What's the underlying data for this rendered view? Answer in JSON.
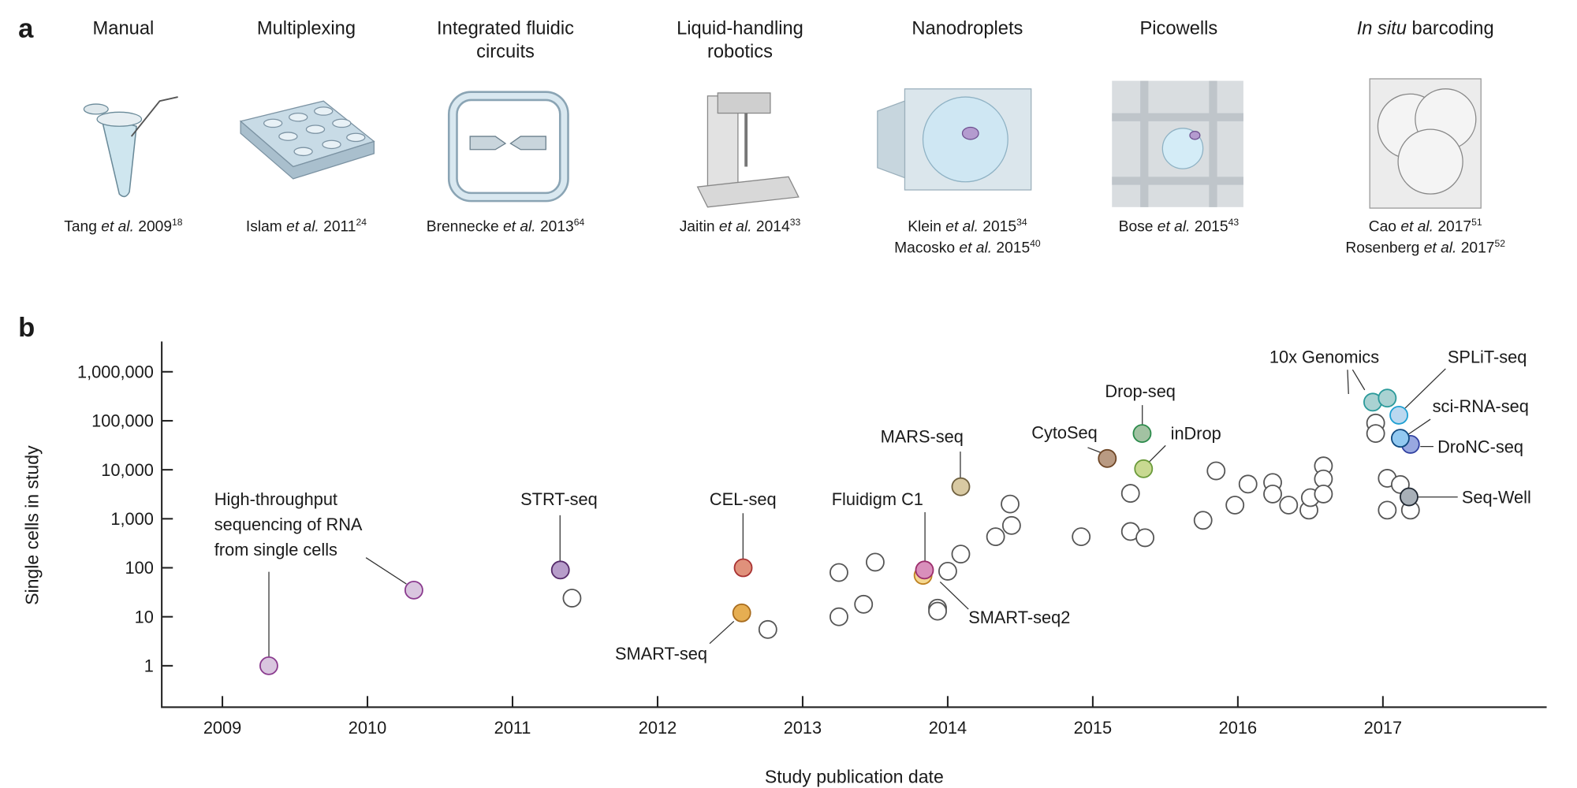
{
  "panel_a": {
    "label": "a",
    "methods": [
      {
        "title": [
          "Manual"
        ],
        "citations": [
          {
            "author": "Tang",
            "etal": "et al.",
            "year": "2009",
            "ref": "18"
          }
        ]
      },
      {
        "title": [
          "Multiplexing"
        ],
        "citations": [
          {
            "author": "Islam",
            "etal": "et al.",
            "year": "2011",
            "ref": "24"
          }
        ]
      },
      {
        "title": [
          "Integrated fluidic",
          "circuits"
        ],
        "citations": [
          {
            "author": "Brennecke",
            "etal": "et al.",
            "year": "2013",
            "ref": "64"
          }
        ]
      },
      {
        "title": [
          "Liquid-handling",
          "robotics"
        ],
        "citations": [
          {
            "author": "Jaitin",
            "etal": "et al.",
            "year": "2014",
            "ref": "33"
          }
        ]
      },
      {
        "title": [
          "Nanodroplets"
        ],
        "citations": [
          {
            "author": "Klein",
            "etal": "et al.",
            "year": "2015",
            "ref": "34"
          },
          {
            "author": "Macosko",
            "etal": "et al.",
            "year": "2015",
            "ref": "40"
          }
        ]
      },
      {
        "title": [
          "Picowells"
        ],
        "citations": [
          {
            "author": "Bose",
            "etal": "et al.",
            "year": "2015",
            "ref": "43"
          }
        ]
      },
      {
        "title_italic": "In situ",
        "title_rest": " barcoding",
        "citations": [
          {
            "author": "Cao",
            "etal": "et al.",
            "year": "2017",
            "ref": "51"
          },
          {
            "author": "Rosenberg",
            "etal": "et al.",
            "year": "2017",
            "ref": "52"
          }
        ]
      }
    ]
  },
  "chart_data": {
    "panel_label": "b",
    "type": "scatter",
    "xlabel": "Study publication date",
    "ylabel": "Single cells in study",
    "xlim": [
      2008.6,
      2017.95
    ],
    "ylim": [
      0.5,
      3000000
    ],
    "yscale": "log",
    "grid": false,
    "xticks": [
      "2009",
      "2010",
      "2011",
      "2012",
      "2013",
      "2014",
      "2015",
      "2016",
      "2017"
    ],
    "yticks": [
      {
        "value": 1,
        "label": "1"
      },
      {
        "value": 10,
        "label": "10"
      },
      {
        "value": 100,
        "label": "100"
      },
      {
        "value": 1000,
        "label": "1,000"
      },
      {
        "value": 10000,
        "label": "10,000"
      },
      {
        "value": 100000,
        "label": "100,000"
      },
      {
        "value": 1000000,
        "label": "1,000,000"
      }
    ],
    "points": [
      {
        "x": 2009.32,
        "y": 1,
        "label": [
          "High-throughput",
          "sequencing of RNA",
          "from single cells"
        ],
        "fill": "#d9c6df",
        "stroke": "#8a3a8e"
      },
      {
        "x": 2010.32,
        "y": 35,
        "fill": "#d9c6df",
        "stroke": "#8a3a8e"
      },
      {
        "x": 2011.33,
        "y": 90,
        "label": [
          "STRT-seq"
        ],
        "fill": "#b79dca",
        "stroke": "#552a6a"
      },
      {
        "x": 2012.59,
        "y": 100,
        "label": [
          "CEL-seq"
        ],
        "fill": "#e0917b",
        "stroke": "#a83232"
      },
      {
        "x": 2012.58,
        "y": 12,
        "label": [
          "SMART-seq"
        ],
        "fill": "#e6ae52",
        "stroke": "#a86c1e"
      },
      {
        "x": 2013.83,
        "y": 70,
        "label": [
          "SMART-seq2"
        ],
        "fill": "#f5d891",
        "stroke": "#bf8222"
      },
      {
        "x": 2013.84,
        "y": 90,
        "label": [
          "Fluidigm C1"
        ],
        "fill": "#d98fbb",
        "stroke": "#9c2d6c"
      },
      {
        "x": 2014.09,
        "y": 4500,
        "label": [
          "MARS-seq"
        ],
        "fill": "#d8c9a2",
        "stroke": "#6e5f3e"
      },
      {
        "x": 2015.1,
        "y": 17000,
        "label": [
          "CytoSeq"
        ],
        "fill": "#b99a82",
        "stroke": "#6e4626"
      },
      {
        "x": 2015.34,
        "y": 55000,
        "label": [
          "Drop-seq"
        ],
        "fill": "#a2c2a2",
        "stroke": "#2a8a4a"
      },
      {
        "x": 2015.35,
        "y": 10500,
        "label": [
          "inDrop"
        ],
        "fill": "#c8d991",
        "stroke": "#6a9a3a"
      },
      {
        "x": 2016.93,
        "y": 240000,
        "label": [
          "10x Genomics"
        ],
        "fill": "#a9d2d2",
        "stroke": "#2a9a9a"
      },
      {
        "x": 2017.03,
        "y": 290000,
        "fill": "#a9d2d2",
        "stroke": "#2a9a9a"
      },
      {
        "x": 2017.11,
        "y": 130000,
        "label": [
          "SPLiT-seq"
        ],
        "fill": "#bad8f0",
        "stroke": "#1fa0d2"
      },
      {
        "x": 2017.19,
        "y": 33000,
        "label": [
          "DroNC-seq"
        ],
        "fill": "#98a8e0",
        "stroke": "#3040a0"
      },
      {
        "x": 2017.12,
        "y": 44000,
        "label": [
          "sci-RNA-seq"
        ],
        "fill": "#92c9f1",
        "stroke": "#104a80"
      },
      {
        "x": 2017.18,
        "y": 2800,
        "label": [
          "Seq-Well"
        ],
        "fill": "#a8b0b8",
        "stroke": "#1e2630"
      },
      {
        "x": 2011.41,
        "y": 24
      },
      {
        "x": 2012.76,
        "y": 5.5
      },
      {
        "x": 2013.25,
        "y": 80
      },
      {
        "x": 2013.25,
        "y": 10
      },
      {
        "x": 2013.42,
        "y": 18
      },
      {
        "x": 2013.5,
        "y": 130
      },
      {
        "x": 2013.93,
        "y": 15
      },
      {
        "x": 2013.93,
        "y": 13
      },
      {
        "x": 2014.0,
        "y": 85
      },
      {
        "x": 2014.09,
        "y": 190
      },
      {
        "x": 2014.33,
        "y": 430
      },
      {
        "x": 2014.44,
        "y": 730
      },
      {
        "x": 2014.43,
        "y": 2000
      },
      {
        "x": 2014.92,
        "y": 430
      },
      {
        "x": 2015.26,
        "y": 3300
      },
      {
        "x": 2015.26,
        "y": 550
      },
      {
        "x": 2015.36,
        "y": 410
      },
      {
        "x": 2015.76,
        "y": 930
      },
      {
        "x": 2015.85,
        "y": 9500
      },
      {
        "x": 2015.98,
        "y": 1900
      },
      {
        "x": 2016.07,
        "y": 5100
      },
      {
        "x": 2016.24,
        "y": 5500
      },
      {
        "x": 2016.24,
        "y": 3200
      },
      {
        "x": 2016.35,
        "y": 1900
      },
      {
        "x": 2016.49,
        "y": 1500
      },
      {
        "x": 2016.5,
        "y": 2700
      },
      {
        "x": 2016.59,
        "y": 12000
      },
      {
        "x": 2016.59,
        "y": 6500
      },
      {
        "x": 2016.59,
        "y": 3200
      },
      {
        "x": 2016.95,
        "y": 90000
      },
      {
        "x": 2016.95,
        "y": 55000
      },
      {
        "x": 2017.03,
        "y": 6700
      },
      {
        "x": 2017.03,
        "y": 1500
      },
      {
        "x": 2017.12,
        "y": 5000
      },
      {
        "x": 2017.19,
        "y": 1500
      }
    ]
  }
}
